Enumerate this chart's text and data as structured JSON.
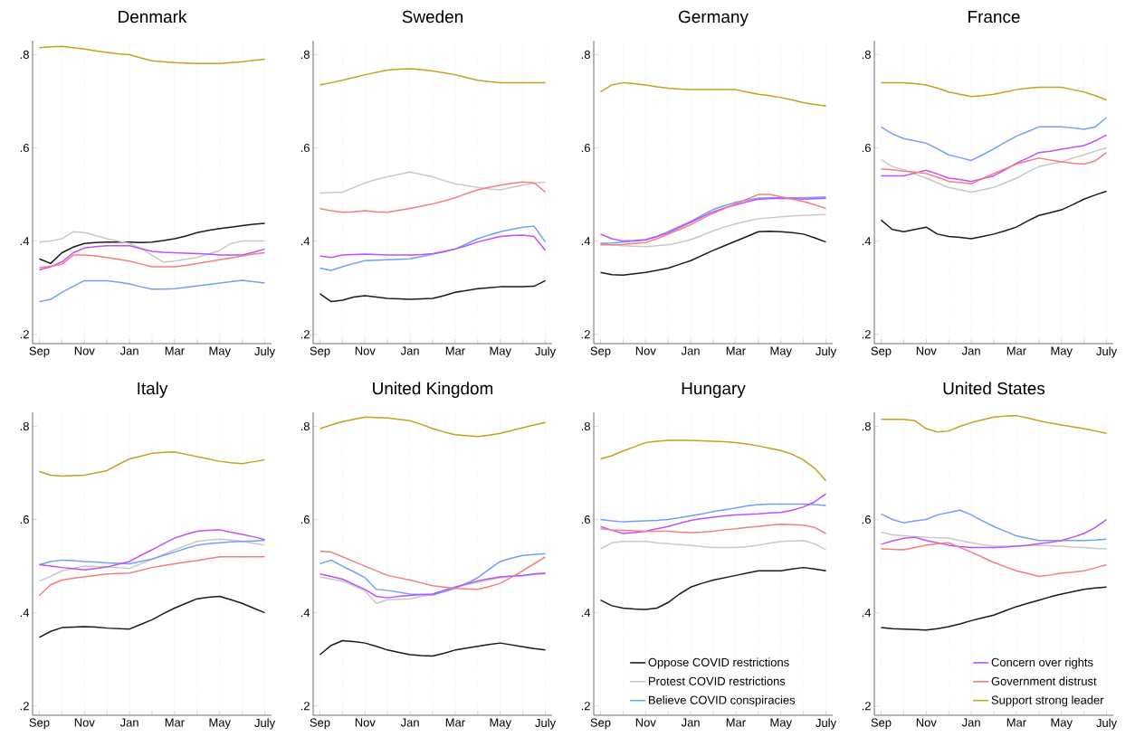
{
  "chart_data": [
    {
      "type": "line",
      "title": "Denmark",
      "grid": "x",
      "legend": false,
      "ylim": [
        0.18,
        0.83
      ],
      "categories": [
        "Sep",
        null,
        null,
        null,
        "Nov",
        null,
        null,
        null,
        "Jan",
        null,
        null,
        null,
        "Mar",
        null,
        null,
        null,
        "May",
        null,
        null,
        null,
        "July"
      ],
      "yticks": [
        {
          "value": 0.2,
          "label": ".2"
        },
        {
          "value": 0.4,
          "label": ".4"
        },
        {
          "value": 0.6,
          "label": ".6"
        },
        {
          "value": 0.8,
          "label": ".8"
        }
      ],
      "series": [
        {
          "color": "#1a1a1a",
          "values": [
            0.362,
            0.352,
            0.375,
            0.387,
            0.395,
            0.397,
            0.398,
            0.398,
            0.398,
            0.397,
            0.398,
            0.401,
            0.405,
            0.411,
            0.418,
            0.423,
            0.427,
            0.43,
            0.433,
            0.436,
            0.438
          ]
        },
        {
          "color": "#c8c8c8",
          "values": [
            0.398,
            0.4,
            0.405,
            0.42,
            0.418,
            0.412,
            0.405,
            0.4,
            0.395,
            0.385,
            0.37,
            0.355,
            0.357,
            0.361,
            0.365,
            0.372,
            0.38,
            0.395,
            0.4,
            0.4,
            0.4
          ]
        },
        {
          "color": "#6ea0ff",
          "values": [
            0.27,
            0.275,
            0.29,
            0.303,
            0.315,
            0.315,
            0.315,
            0.312,
            0.308,
            0.302,
            0.297,
            0.297,
            0.298,
            0.301,
            0.304,
            0.307,
            0.31,
            0.313,
            0.316,
            0.313,
            0.31
          ]
        },
        {
          "color": "#c050ff",
          "values": [
            0.338,
            0.345,
            0.355,
            0.375,
            0.385,
            0.388,
            0.39,
            0.39,
            0.39,
            0.384,
            0.378,
            0.376,
            0.375,
            0.374,
            0.373,
            0.372,
            0.37,
            0.37,
            0.37,
            0.376,
            0.383
          ]
        },
        {
          "color": "#f87d7d",
          "values": [
            0.343,
            0.346,
            0.35,
            0.37,
            0.37,
            0.368,
            0.365,
            0.361,
            0.357,
            0.351,
            0.345,
            0.345,
            0.345,
            0.348,
            0.352,
            0.356,
            0.36,
            0.364,
            0.368,
            0.372,
            0.375
          ]
        },
        {
          "color": "#c8a020",
          "values": [
            0.815,
            0.817,
            0.818,
            0.815,
            0.812,
            0.808,
            0.805,
            0.802,
            0.8,
            0.793,
            0.787,
            0.785,
            0.783,
            0.782,
            0.781,
            0.781,
            0.781,
            0.783,
            0.785,
            0.788,
            0.79
          ]
        }
      ]
    },
    {
      "type": "line",
      "title": "Sweden",
      "grid": "x",
      "legend": false,
      "ylim": [
        0.18,
        0.83
      ],
      "categories": [
        "Sep",
        null,
        null,
        null,
        "Nov",
        null,
        null,
        null,
        "Jan",
        null,
        null,
        null,
        "Mar",
        null,
        null,
        null,
        "May",
        null,
        null,
        null,
        "July"
      ],
      "yticks": [
        {
          "value": 0.2,
          "label": ".2"
        },
        {
          "value": 0.4,
          "label": ".4"
        },
        {
          "value": 0.6,
          "label": ".6"
        },
        {
          "value": 0.8,
          "label": ".8"
        }
      ],
      "series": [
        {
          "color": "#1a1a1a",
          "values": [
            0.287,
            0.27,
            0.273,
            0.28,
            0.283,
            0.28,
            0.277,
            0.276,
            0.275,
            0.276,
            0.277,
            0.283,
            0.29,
            0.294,
            0.298,
            0.3,
            0.302,
            0.302,
            0.302,
            0.303,
            0.315
          ]
        },
        {
          "color": "#c8c8c8",
          "values": [
            0.503,
            0.504,
            0.505,
            0.515,
            0.525,
            0.532,
            0.538,
            0.543,
            0.548,
            0.543,
            0.538,
            0.53,
            0.523,
            0.519,
            0.515,
            0.512,
            0.51,
            0.515,
            0.52,
            0.524,
            0.527
          ]
        },
        {
          "color": "#6ea0ff",
          "values": [
            0.342,
            0.337,
            0.345,
            0.352,
            0.358,
            0.359,
            0.36,
            0.361,
            0.362,
            0.367,
            0.372,
            0.377,
            0.383,
            0.394,
            0.405,
            0.413,
            0.42,
            0.425,
            0.43,
            0.432,
            0.398
          ]
        },
        {
          "color": "#c050ff",
          "values": [
            0.368,
            0.365,
            0.37,
            0.371,
            0.372,
            0.371,
            0.37,
            0.37,
            0.37,
            0.371,
            0.373,
            0.378,
            0.383,
            0.39,
            0.398,
            0.404,
            0.41,
            0.412,
            0.413,
            0.41,
            0.38
          ]
        },
        {
          "color": "#f87d7d",
          "values": [
            0.47,
            0.465,
            0.462,
            0.463,
            0.465,
            0.463,
            0.462,
            0.466,
            0.47,
            0.475,
            0.48,
            0.486,
            0.493,
            0.502,
            0.51,
            0.515,
            0.52,
            0.524,
            0.527,
            0.525,
            0.505
          ]
        },
        {
          "color": "#c8a020",
          "values": [
            0.735,
            0.74,
            0.745,
            0.751,
            0.757,
            0.762,
            0.767,
            0.769,
            0.77,
            0.768,
            0.765,
            0.761,
            0.757,
            0.751,
            0.745,
            0.742,
            0.74,
            0.74,
            0.74,
            0.74,
            0.74
          ]
        }
      ]
    },
    {
      "type": "line",
      "title": "Germany",
      "grid": "x",
      "legend": false,
      "ylim": [
        0.18,
        0.83
      ],
      "categories": [
        "Sep",
        null,
        null,
        null,
        "Nov",
        null,
        null,
        null,
        "Jan",
        null,
        null,
        null,
        "Mar",
        null,
        null,
        null,
        "May",
        null,
        null,
        null,
        "July"
      ],
      "yticks": [
        {
          "value": 0.2,
          "label": ".2"
        },
        {
          "value": 0.4,
          "label": ".4"
        },
        {
          "value": 0.6,
          "label": ".6"
        },
        {
          "value": 0.8,
          "label": ".8"
        }
      ],
      "series": [
        {
          "color": "#1a1a1a",
          "values": [
            0.333,
            0.328,
            0.327,
            0.33,
            0.333,
            0.337,
            0.342,
            0.35,
            0.358,
            0.369,
            0.38,
            0.39,
            0.4,
            0.41,
            0.42,
            0.421,
            0.42,
            0.418,
            0.415,
            0.407,
            0.398
          ]
        },
        {
          "color": "#c8c8c8",
          "values": [
            0.395,
            0.392,
            0.39,
            0.389,
            0.388,
            0.39,
            0.392,
            0.397,
            0.403,
            0.412,
            0.422,
            0.43,
            0.437,
            0.443,
            0.448,
            0.45,
            0.452,
            0.454,
            0.455,
            0.456,
            0.457
          ]
        },
        {
          "color": "#6ea0ff",
          "values": [
            0.395,
            0.396,
            0.398,
            0.4,
            0.402,
            0.41,
            0.42,
            0.431,
            0.442,
            0.455,
            0.468,
            0.476,
            0.483,
            0.488,
            0.492,
            0.493,
            0.493,
            0.493,
            0.493,
            0.494,
            0.495
          ]
        },
        {
          "color": "#c050ff",
          "values": [
            0.415,
            0.405,
            0.4,
            0.401,
            0.403,
            0.41,
            0.418,
            0.429,
            0.44,
            0.452,
            0.463,
            0.471,
            0.478,
            0.484,
            0.49,
            0.491,
            0.492,
            0.491,
            0.49,
            0.491,
            0.492
          ]
        },
        {
          "color": "#f87d7d",
          "values": [
            0.392,
            0.392,
            0.393,
            0.395,
            0.397,
            0.405,
            0.415,
            0.425,
            0.435,
            0.448,
            0.46,
            0.47,
            0.48,
            0.49,
            0.5,
            0.5,
            0.495,
            0.49,
            0.485,
            0.478,
            0.47
          ]
        },
        {
          "color": "#c8a020",
          "values": [
            0.72,
            0.735,
            0.74,
            0.738,
            0.735,
            0.731,
            0.728,
            0.726,
            0.725,
            0.725,
            0.725,
            0.725,
            0.725,
            0.72,
            0.715,
            0.712,
            0.708,
            0.703,
            0.697,
            0.693,
            0.69
          ]
        }
      ]
    },
    {
      "type": "line",
      "title": "France",
      "grid": "x",
      "legend": false,
      "ylim": [
        0.18,
        0.83
      ],
      "categories": [
        "Sep",
        null,
        null,
        null,
        "Nov",
        null,
        null,
        null,
        "Jan",
        null,
        null,
        null,
        "Mar",
        null,
        null,
        null,
        "May",
        null,
        null,
        null,
        "July"
      ],
      "yticks": [
        {
          "value": 0.2,
          "label": ".2"
        },
        {
          "value": 0.4,
          "label": ".4"
        },
        {
          "value": 0.6,
          "label": ".6"
        },
        {
          "value": 0.8,
          "label": ".8"
        }
      ],
      "series": [
        {
          "color": "#1a1a1a",
          "values": [
            0.445,
            0.425,
            0.42,
            0.425,
            0.43,
            0.415,
            0.41,
            0.408,
            0.405,
            0.41,
            0.415,
            0.422,
            0.43,
            0.443,
            0.455,
            0.461,
            0.467,
            0.478,
            0.49,
            0.499,
            0.507
          ]
        },
        {
          "color": "#c8c8c8",
          "values": [
            0.575,
            0.56,
            0.553,
            0.544,
            0.535,
            0.525,
            0.515,
            0.51,
            0.505,
            0.51,
            0.515,
            0.525,
            0.535,
            0.548,
            0.56,
            0.565,
            0.57,
            0.578,
            0.585,
            0.593,
            0.6
          ]
        },
        {
          "color": "#6ea0ff",
          "values": [
            0.645,
            0.63,
            0.62,
            0.615,
            0.61,
            0.598,
            0.585,
            0.579,
            0.573,
            0.585,
            0.598,
            0.612,
            0.625,
            0.635,
            0.645,
            0.645,
            0.645,
            0.643,
            0.64,
            0.645,
            0.665
          ]
        },
        {
          "color": "#c050ff",
          "values": [
            0.54,
            0.54,
            0.54,
            0.546,
            0.552,
            0.544,
            0.535,
            0.532,
            0.528,
            0.534,
            0.54,
            0.553,
            0.567,
            0.578,
            0.59,
            0.593,
            0.597,
            0.601,
            0.605,
            0.615,
            0.628
          ]
        },
        {
          "color": "#f87d7d",
          "values": [
            0.555,
            0.553,
            0.55,
            0.548,
            0.545,
            0.537,
            0.528,
            0.526,
            0.523,
            0.534,
            0.545,
            0.555,
            0.565,
            0.572,
            0.578,
            0.574,
            0.57,
            0.567,
            0.565,
            0.572,
            0.59
          ]
        },
        {
          "color": "#c8a020",
          "values": [
            0.74,
            0.74,
            0.74,
            0.738,
            0.735,
            0.728,
            0.72,
            0.715,
            0.71,
            0.712,
            0.715,
            0.72,
            0.725,
            0.728,
            0.73,
            0.73,
            0.73,
            0.725,
            0.72,
            0.712,
            0.703
          ]
        }
      ]
    },
    {
      "type": "line",
      "title": "Italy",
      "grid": "x",
      "legend": false,
      "ylim": [
        0.18,
        0.83
      ],
      "categories": [
        "Sep",
        null,
        null,
        null,
        "Nov",
        null,
        null,
        null,
        "Jan",
        null,
        null,
        null,
        "Mar",
        null,
        null,
        null,
        "May",
        null,
        null,
        null,
        "July"
      ],
      "yticks": [
        {
          "value": 0.2,
          "label": ".2"
        },
        {
          "value": 0.4,
          "label": ".4"
        },
        {
          "value": 0.6,
          "label": ".6"
        },
        {
          "value": 0.8,
          "label": ".8"
        }
      ],
      "series": [
        {
          "color": "#1a1a1a",
          "values": [
            0.347,
            0.36,
            0.368,
            0.369,
            0.37,
            0.369,
            0.367,
            0.366,
            0.365,
            0.375,
            0.385,
            0.398,
            0.41,
            0.42,
            0.43,
            0.433,
            0.435,
            0.428,
            0.42,
            0.41,
            0.4
          ]
        },
        {
          "color": "#c8c8c8",
          "values": [
            0.468,
            0.478,
            0.49,
            0.495,
            0.5,
            0.499,
            0.498,
            0.497,
            0.495,
            0.505,
            0.515,
            0.525,
            0.535,
            0.544,
            0.553,
            0.556,
            0.558,
            0.556,
            0.553,
            0.549,
            0.545
          ]
        },
        {
          "color": "#6ea0ff",
          "values": [
            0.503,
            0.51,
            0.513,
            0.512,
            0.51,
            0.509,
            0.507,
            0.506,
            0.505,
            0.51,
            0.515,
            0.523,
            0.53,
            0.538,
            0.545,
            0.548,
            0.55,
            0.552,
            0.553,
            0.554,
            0.555
          ]
        },
        {
          "color": "#c050ff",
          "values": [
            0.503,
            0.5,
            0.497,
            0.495,
            0.492,
            0.495,
            0.498,
            0.504,
            0.51,
            0.523,
            0.535,
            0.548,
            0.56,
            0.568,
            0.575,
            0.577,
            0.578,
            0.573,
            0.568,
            0.563,
            0.557
          ]
        },
        {
          "color": "#f87d7d",
          "values": [
            0.437,
            0.46,
            0.47,
            0.474,
            0.477,
            0.48,
            0.483,
            0.484,
            0.485,
            0.491,
            0.497,
            0.501,
            0.505,
            0.509,
            0.512,
            0.516,
            0.52,
            0.52,
            0.52,
            0.52,
            0.52
          ]
        },
        {
          "color": "#c8a020",
          "values": [
            0.703,
            0.695,
            0.693,
            0.694,
            0.695,
            0.7,
            0.705,
            0.718,
            0.73,
            0.736,
            0.742,
            0.744,
            0.745,
            0.74,
            0.735,
            0.73,
            0.725,
            0.722,
            0.72,
            0.724,
            0.728
          ]
        }
      ]
    },
    {
      "type": "line",
      "title": "United Kingdom",
      "grid": "x",
      "legend": false,
      "ylim": [
        0.18,
        0.83
      ],
      "categories": [
        "Sep",
        null,
        null,
        null,
        "Nov",
        null,
        null,
        null,
        "Jan",
        null,
        null,
        null,
        "Mar",
        null,
        null,
        null,
        "May",
        null,
        null,
        null,
        "July"
      ],
      "yticks": [
        {
          "value": 0.2,
          "label": ".2"
        },
        {
          "value": 0.4,
          "label": ".4"
        },
        {
          "value": 0.6,
          "label": ".6"
        },
        {
          "value": 0.8,
          "label": ".8"
        }
      ],
      "series": [
        {
          "color": "#1a1a1a",
          "values": [
            0.31,
            0.33,
            0.34,
            0.338,
            0.335,
            0.328,
            0.32,
            0.315,
            0.31,
            0.308,
            0.307,
            0.313,
            0.32,
            0.324,
            0.328,
            0.332,
            0.335,
            0.331,
            0.327,
            0.323,
            0.32
          ]
        },
        {
          "color": "#c8c8c8",
          "values": [
            0.477,
            0.472,
            0.468,
            0.458,
            0.447,
            0.42,
            0.428,
            0.429,
            0.43,
            0.435,
            0.44,
            0.448,
            0.455,
            0.46,
            0.465,
            0.47,
            0.475,
            0.478,
            0.48,
            0.482,
            0.483
          ]
        },
        {
          "color": "#6ea0ff",
          "values": [
            0.505,
            0.513,
            0.5,
            0.488,
            0.475,
            0.45,
            0.448,
            0.444,
            0.44,
            0.439,
            0.438,
            0.445,
            0.452,
            0.463,
            0.475,
            0.493,
            0.51,
            0.517,
            0.523,
            0.525,
            0.527
          ]
        },
        {
          "color": "#c050ff",
          "values": [
            0.483,
            0.478,
            0.472,
            0.461,
            0.45,
            0.435,
            0.432,
            0.435,
            0.437,
            0.439,
            0.44,
            0.448,
            0.455,
            0.462,
            0.468,
            0.473,
            0.477,
            0.479,
            0.48,
            0.483,
            0.485
          ]
        },
        {
          "color": "#f87d7d",
          "values": [
            0.532,
            0.53,
            0.52,
            0.51,
            0.5,
            0.49,
            0.48,
            0.475,
            0.47,
            0.464,
            0.458,
            0.455,
            0.452,
            0.451,
            0.45,
            0.456,
            0.463,
            0.476,
            0.49,
            0.505,
            0.52
          ]
        },
        {
          "color": "#c8a020",
          "values": [
            0.795,
            0.803,
            0.81,
            0.815,
            0.82,
            0.819,
            0.818,
            0.815,
            0.812,
            0.804,
            0.795,
            0.788,
            0.782,
            0.78,
            0.778,
            0.781,
            0.785,
            0.791,
            0.797,
            0.803,
            0.808
          ]
        }
      ]
    },
    {
      "type": "line",
      "title": "Hungary",
      "grid": "x",
      "legend": "bottom",
      "ylim": [
        0.18,
        0.83
      ],
      "categories": [
        "Sep",
        null,
        null,
        null,
        "Nov",
        null,
        null,
        null,
        "Jan",
        null,
        null,
        null,
        "Mar",
        null,
        null,
        null,
        "May",
        null,
        null,
        null,
        "July"
      ],
      "yticks": [
        {
          "value": 0.2,
          "label": ".2"
        },
        {
          "value": 0.4,
          "label": ".4"
        },
        {
          "value": 0.6,
          "label": ".6"
        },
        {
          "value": 0.8,
          "label": ".8"
        }
      ],
      "series": [
        {
          "name": "Oppose COVID restrictions",
          "color": "#1a1a1a",
          "values": [
            0.427,
            0.415,
            0.41,
            0.408,
            0.407,
            0.41,
            0.422,
            0.44,
            0.455,
            0.463,
            0.47,
            0.475,
            0.48,
            0.485,
            0.49,
            0.49,
            0.49,
            0.494,
            0.497,
            0.494,
            0.49
          ]
        },
        {
          "name": "Protest COVID restrictions",
          "color": "#c8c8c8",
          "values": [
            0.537,
            0.55,
            0.553,
            0.553,
            0.553,
            0.55,
            0.548,
            0.546,
            0.545,
            0.542,
            0.54,
            0.54,
            0.54,
            0.542,
            0.545,
            0.549,
            0.553,
            0.554,
            0.555,
            0.548,
            0.535
          ]
        },
        {
          "name": "Believe COVID conspiracies",
          "color": "#6ea0ff",
          "values": [
            0.6,
            0.597,
            0.595,
            0.596,
            0.597,
            0.598,
            0.6,
            0.604,
            0.608,
            0.612,
            0.617,
            0.621,
            0.625,
            0.629,
            0.632,
            0.633,
            0.633,
            0.633,
            0.633,
            0.632,
            0.63
          ]
        },
        {
          "color": "#c050ff",
          "values": [
            0.585,
            0.577,
            0.57,
            0.572,
            0.575,
            0.58,
            0.585,
            0.592,
            0.598,
            0.602,
            0.605,
            0.608,
            0.61,
            0.611,
            0.612,
            0.614,
            0.615,
            0.62,
            0.627,
            0.638,
            0.655
          ]
        },
        {
          "color": "#f87d7d",
          "values": [
            0.58,
            0.578,
            0.577,
            0.576,
            0.575,
            0.575,
            0.575,
            0.573,
            0.572,
            0.573,
            0.575,
            0.578,
            0.58,
            0.583,
            0.585,
            0.588,
            0.59,
            0.589,
            0.588,
            0.583,
            0.57
          ]
        },
        {
          "color": "#c8a020",
          "values": [
            0.73,
            0.737,
            0.747,
            0.756,
            0.765,
            0.768,
            0.77,
            0.77,
            0.77,
            0.769,
            0.768,
            0.767,
            0.765,
            0.762,
            0.758,
            0.753,
            0.748,
            0.74,
            0.728,
            0.71,
            0.683
          ]
        }
      ]
    },
    {
      "type": "line",
      "title": "United States",
      "grid": "x",
      "legend": "bottom right",
      "ylim": [
        0.18,
        0.83
      ],
      "categories": [
        "Sep",
        null,
        null,
        null,
        "Nov",
        null,
        null,
        null,
        "Jan",
        null,
        null,
        null,
        "Mar",
        null,
        null,
        null,
        "May",
        null,
        null,
        null,
        "July"
      ],
      "yticks": [
        {
          "value": 0.2,
          "label": ".2"
        },
        {
          "value": 0.4,
          "label": ".4"
        },
        {
          "value": 0.6,
          "label": ".6"
        },
        {
          "value": 0.8,
          "label": ".8"
        }
      ],
      "series": [
        {
          "color": "#1a1a1a",
          "values": [
            0.368,
            0.366,
            0.365,
            0.364,
            0.363,
            0.366,
            0.37,
            0.376,
            0.383,
            0.389,
            0.395,
            0.404,
            0.413,
            0.42,
            0.427,
            0.434,
            0.44,
            0.445,
            0.45,
            0.453,
            0.455
          ]
        },
        {
          "color": "#c8c8c8",
          "values": [
            0.573,
            0.567,
            0.565,
            0.563,
            0.562,
            0.561,
            0.56,
            0.555,
            0.55,
            0.546,
            0.543,
            0.543,
            0.543,
            0.544,
            0.545,
            0.544,
            0.543,
            0.541,
            0.54,
            0.538,
            0.537
          ]
        },
        {
          "color": "#6ea0ff",
          "values": [
            0.612,
            0.6,
            0.593,
            0.597,
            0.6,
            0.61,
            0.615,
            0.62,
            0.61,
            0.597,
            0.585,
            0.575,
            0.565,
            0.56,
            0.555,
            0.555,
            0.555,
            0.555,
            0.555,
            0.556,
            0.558
          ]
        },
        {
          "name": "Concern over rights",
          "color": "#c050ff",
          "values": [
            0.547,
            0.554,
            0.56,
            0.562,
            0.555,
            0.55,
            0.545,
            0.542,
            0.54,
            0.54,
            0.54,
            0.541,
            0.543,
            0.545,
            0.548,
            0.551,
            0.555,
            0.562,
            0.57,
            0.583,
            0.6
          ]
        },
        {
          "name": "Government distrust",
          "color": "#f87d7d",
          "values": [
            0.537,
            0.536,
            0.535,
            0.54,
            0.545,
            0.548,
            0.55,
            0.54,
            0.53,
            0.519,
            0.508,
            0.499,
            0.49,
            0.484,
            0.478,
            0.481,
            0.485,
            0.487,
            0.49,
            0.496,
            0.503
          ]
        },
        {
          "name": "Support strong leader",
          "color": "#c8a020",
          "values": [
            0.815,
            0.815,
            0.815,
            0.812,
            0.795,
            0.788,
            0.79,
            0.8,
            0.808,
            0.814,
            0.82,
            0.822,
            0.823,
            0.818,
            0.812,
            0.807,
            0.803,
            0.799,
            0.795,
            0.79,
            0.785
          ]
        }
      ]
    }
  ]
}
